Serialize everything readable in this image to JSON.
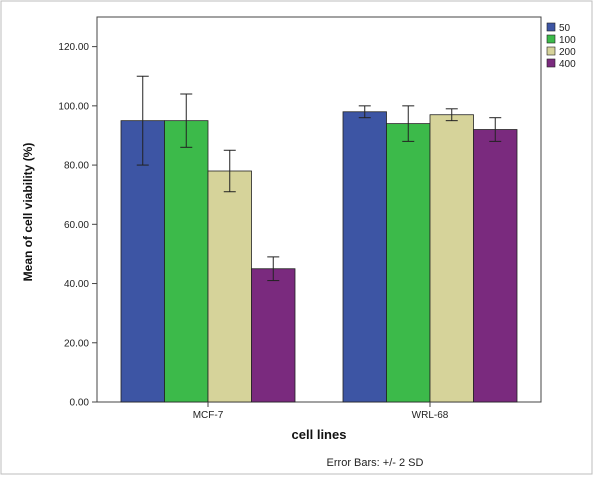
{
  "chart_data": {
    "type": "bar",
    "title": "",
    "xlabel": "cell lines",
    "ylabel": "Mean of cell viability (%)",
    "footnote": "Error Bars: +/- 2 SD",
    "categories": [
      "MCF-7",
      "WRL-68"
    ],
    "ylim": [
      0,
      130
    ],
    "yticks": [
      "0.00",
      "20.00",
      "40.00",
      "60.00",
      "80.00",
      "100.00",
      "120.00"
    ],
    "grid": false,
    "legend_position": "top-right",
    "series": [
      {
        "name": "50",
        "color": "#3d55a4",
        "values": [
          95.0,
          98.0
        ],
        "error_low": [
          80.0,
          96.0
        ],
        "error_high": [
          110.0,
          100.0
        ]
      },
      {
        "name": "100",
        "color": "#3cba4a",
        "values": [
          95.0,
          94.0
        ],
        "error_low": [
          86.0,
          88.0
        ],
        "error_high": [
          104.0,
          100.0
        ]
      },
      {
        "name": "200",
        "color": "#d6d39a",
        "values": [
          78.0,
          97.0
        ],
        "error_low": [
          71.0,
          95.0
        ],
        "error_high": [
          85.0,
          99.0
        ]
      },
      {
        "name": "400",
        "color": "#7a2a7e",
        "values": [
          45.0,
          92.0
        ],
        "error_low": [
          41.0,
          88.0
        ],
        "error_high": [
          49.0,
          96.0
        ]
      }
    ]
  }
}
